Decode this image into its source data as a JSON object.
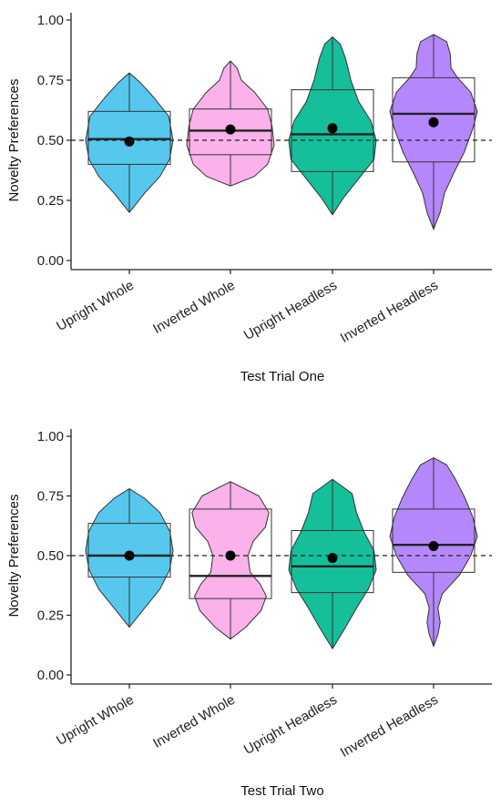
{
  "chart_data": [
    {
      "type": "violin",
      "title": "",
      "xlabel": "Test Trial One",
      "ylabel": "Novelty Preferences",
      "ylim": [
        0,
        1
      ],
      "yticks": [
        "0.00",
        "0.25",
        "0.50",
        "0.75",
        "1.00"
      ],
      "reference_line": 0.5,
      "grid": false,
      "categories": [
        "Upright Whole",
        "Inverted Whole",
        "Upright Headless",
        "Inverted Headless"
      ],
      "colors": [
        "#56c8ee",
        "#fbb1ea",
        "#14bf9a",
        "#b587fc"
      ],
      "series": [
        {
          "min": 0.2,
          "max": 0.78,
          "q1": 0.4,
          "median": 0.505,
          "q3": 0.62,
          "mean": 0.495,
          "shape": [
            [
              0.2,
              0.0
            ],
            [
              0.28,
              0.35
            ],
            [
              0.35,
              0.7
            ],
            [
              0.42,
              0.92
            ],
            [
              0.5,
              1.0
            ],
            [
              0.6,
              0.9
            ],
            [
              0.68,
              0.55
            ],
            [
              0.74,
              0.25
            ],
            [
              0.78,
              0.0
            ]
          ]
        },
        {
          "min": 0.31,
          "max": 0.83,
          "q1": 0.44,
          "median": 0.54,
          "q3": 0.63,
          "mean": 0.545,
          "shape": [
            [
              0.31,
              0.0
            ],
            [
              0.35,
              0.55
            ],
            [
              0.4,
              0.85
            ],
            [
              0.48,
              1.0
            ],
            [
              0.56,
              0.95
            ],
            [
              0.63,
              0.85
            ],
            [
              0.7,
              0.55
            ],
            [
              0.75,
              0.25
            ],
            [
              0.8,
              0.15
            ],
            [
              0.83,
              0.0
            ]
          ]
        },
        {
          "min": 0.19,
          "max": 0.93,
          "q1": 0.37,
          "median": 0.525,
          "q3": 0.71,
          "mean": 0.55,
          "shape": [
            [
              0.19,
              0.0
            ],
            [
              0.26,
              0.25
            ],
            [
              0.34,
              0.6
            ],
            [
              0.42,
              0.95
            ],
            [
              0.5,
              1.0
            ],
            [
              0.58,
              0.88
            ],
            [
              0.66,
              0.6
            ],
            [
              0.75,
              0.42
            ],
            [
              0.84,
              0.3
            ],
            [
              0.9,
              0.18
            ],
            [
              0.93,
              0.0
            ]
          ]
        },
        {
          "min": 0.13,
          "max": 0.94,
          "q1": 0.41,
          "median": 0.61,
          "q3": 0.76,
          "mean": 0.575,
          "shape": [
            [
              0.13,
              0.0
            ],
            [
              0.2,
              0.15
            ],
            [
              0.28,
              0.25
            ],
            [
              0.36,
              0.45
            ],
            [
              0.45,
              0.7
            ],
            [
              0.55,
              0.9
            ],
            [
              0.62,
              1.0
            ],
            [
              0.7,
              0.85
            ],
            [
              0.76,
              0.55
            ],
            [
              0.8,
              0.4
            ],
            [
              0.86,
              0.38
            ],
            [
              0.91,
              0.3
            ],
            [
              0.94,
              0.0
            ]
          ]
        }
      ]
    },
    {
      "type": "violin",
      "title": "",
      "xlabel": "Test Trial Two",
      "ylabel": "Novelty Preferences",
      "ylim": [
        0,
        1
      ],
      "yticks": [
        "0.00",
        "0.25",
        "0.50",
        "0.75",
        "1.00"
      ],
      "reference_line": 0.5,
      "grid": false,
      "categories": [
        "Upright Whole",
        "Inverted Whole",
        "Upright Headless",
        "Inverted Headless"
      ],
      "colors": [
        "#56c8ee",
        "#fbb1ea",
        "#14bf9a",
        "#b587fc"
      ],
      "series": [
        {
          "min": 0.2,
          "max": 0.78,
          "q1": 0.41,
          "median": 0.5,
          "q3": 0.635,
          "mean": 0.5,
          "shape": [
            [
              0.2,
              0.0
            ],
            [
              0.28,
              0.35
            ],
            [
              0.36,
              0.7
            ],
            [
              0.44,
              0.92
            ],
            [
              0.52,
              1.0
            ],
            [
              0.6,
              0.93
            ],
            [
              0.68,
              0.7
            ],
            [
              0.74,
              0.35
            ],
            [
              0.78,
              0.0
            ]
          ]
        },
        {
          "min": 0.15,
          "max": 0.81,
          "q1": 0.32,
          "median": 0.415,
          "q3": 0.695,
          "mean": 0.5,
          "shape": [
            [
              0.15,
              0.0
            ],
            [
              0.2,
              0.35
            ],
            [
              0.27,
              0.7
            ],
            [
              0.33,
              0.82
            ],
            [
              0.38,
              0.68
            ],
            [
              0.43,
              0.45
            ],
            [
              0.5,
              0.4
            ],
            [
              0.56,
              0.52
            ],
            [
              0.62,
              0.8
            ],
            [
              0.68,
              0.88
            ],
            [
              0.75,
              0.65
            ],
            [
              0.81,
              0.0
            ]
          ]
        },
        {
          "min": 0.11,
          "max": 0.82,
          "q1": 0.345,
          "median": 0.455,
          "q3": 0.605,
          "mean": 0.49,
          "shape": [
            [
              0.11,
              0.0
            ],
            [
              0.2,
              0.3
            ],
            [
              0.28,
              0.55
            ],
            [
              0.36,
              0.82
            ],
            [
              0.44,
              1.0
            ],
            [
              0.52,
              0.95
            ],
            [
              0.6,
              0.72
            ],
            [
              0.68,
              0.55
            ],
            [
              0.76,
              0.45
            ],
            [
              0.82,
              0.0
            ]
          ]
        },
        {
          "min": 0.12,
          "max": 0.91,
          "q1": 0.43,
          "median": 0.545,
          "q3": 0.695,
          "mean": 0.54,
          "shape": [
            [
              0.12,
              0.0
            ],
            [
              0.17,
              0.1
            ],
            [
              0.22,
              0.15
            ],
            [
              0.28,
              0.1
            ],
            [
              0.34,
              0.2
            ],
            [
              0.42,
              0.6
            ],
            [
              0.5,
              0.85
            ],
            [
              0.58,
              1.0
            ],
            [
              0.66,
              0.9
            ],
            [
              0.74,
              0.72
            ],
            [
              0.82,
              0.5
            ],
            [
              0.88,
              0.3
            ],
            [
              0.91,
              0.0
            ]
          ]
        }
      ]
    }
  ]
}
